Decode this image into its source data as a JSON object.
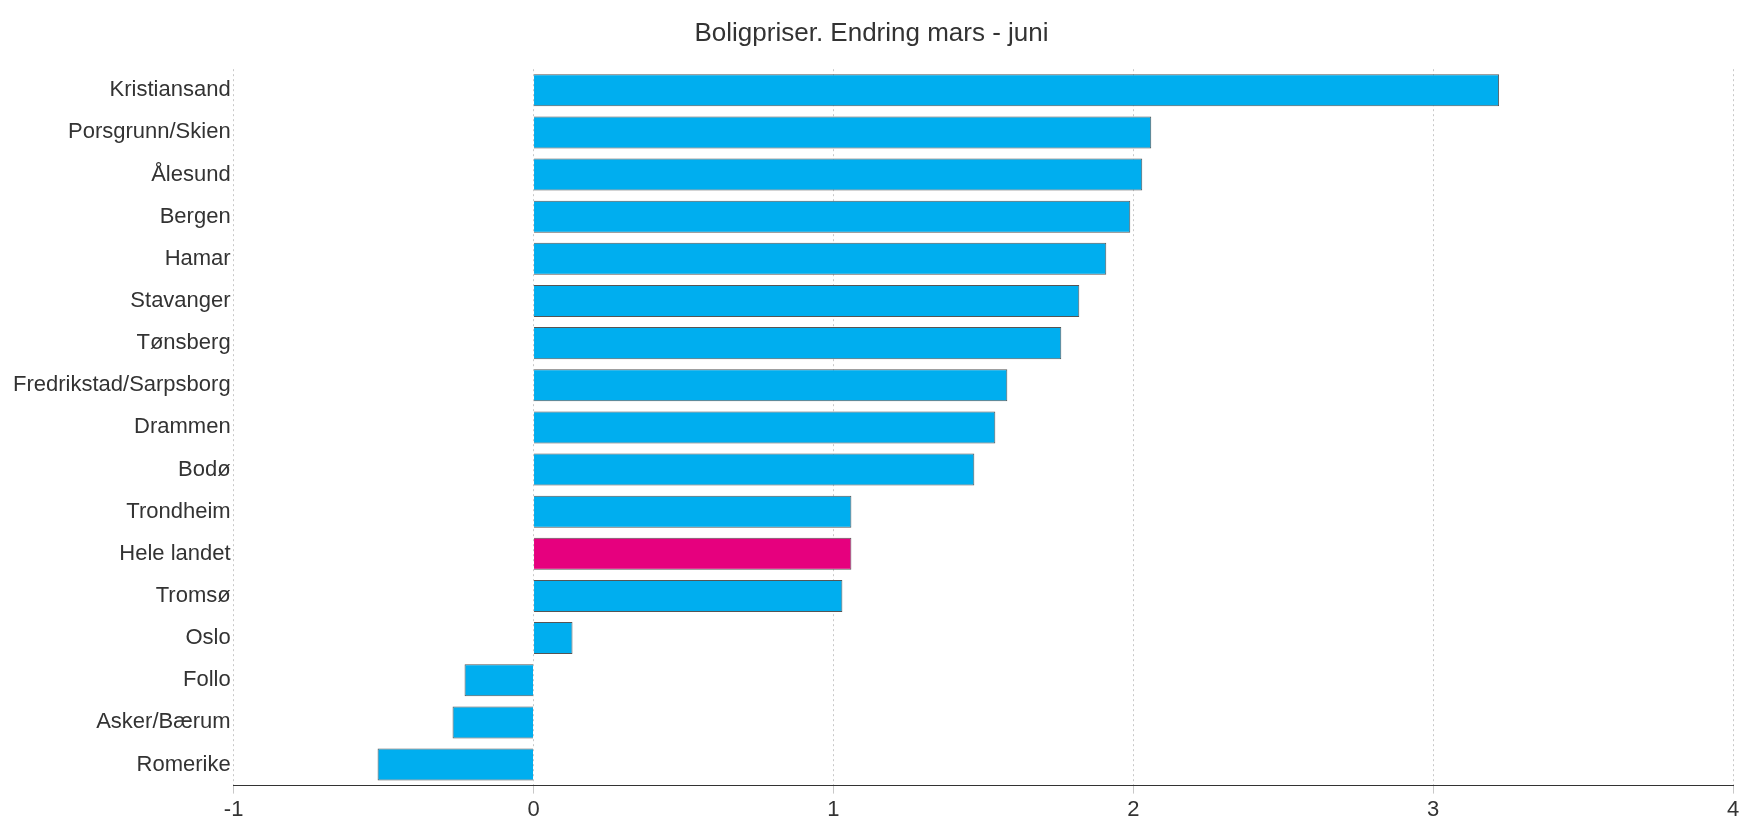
{
  "chart_data": {
    "type": "bar",
    "orientation": "horizontal",
    "title": "Boligpriser. Endring mars - juni",
    "categories": [
      "Kristiansand",
      "Porsgrunn/Skien",
      "Ålesund",
      "Bergen",
      "Hamar",
      "Stavanger",
      "Tønsberg",
      "Fredrikstad/Sarpsborg",
      "Drammen",
      "Bodø",
      "Trondheim",
      "Hele landet",
      "Tromsø",
      "Oslo",
      "Follo",
      "Asker/Bærum",
      "Romerike"
    ],
    "values": [
      3.22,
      2.06,
      2.03,
      1.99,
      1.91,
      1.82,
      1.76,
      1.58,
      1.54,
      1.47,
      1.06,
      1.06,
      1.03,
      0.13,
      -0.23,
      -0.27,
      -0.52
    ],
    "colors": [
      "#00aeef",
      "#00aeef",
      "#00aeef",
      "#00aeef",
      "#00aeef",
      "#00aeef",
      "#00aeef",
      "#00aeef",
      "#00aeef",
      "#00aeef",
      "#00aeef",
      "#e6007e",
      "#00aeef",
      "#00aeef",
      "#00aeef",
      "#00aeef",
      "#00aeef"
    ],
    "xlim": [
      -1,
      4
    ],
    "xticks": [
      -1,
      0,
      1,
      2,
      3,
      4
    ],
    "grid": "x",
    "legend": false
  }
}
